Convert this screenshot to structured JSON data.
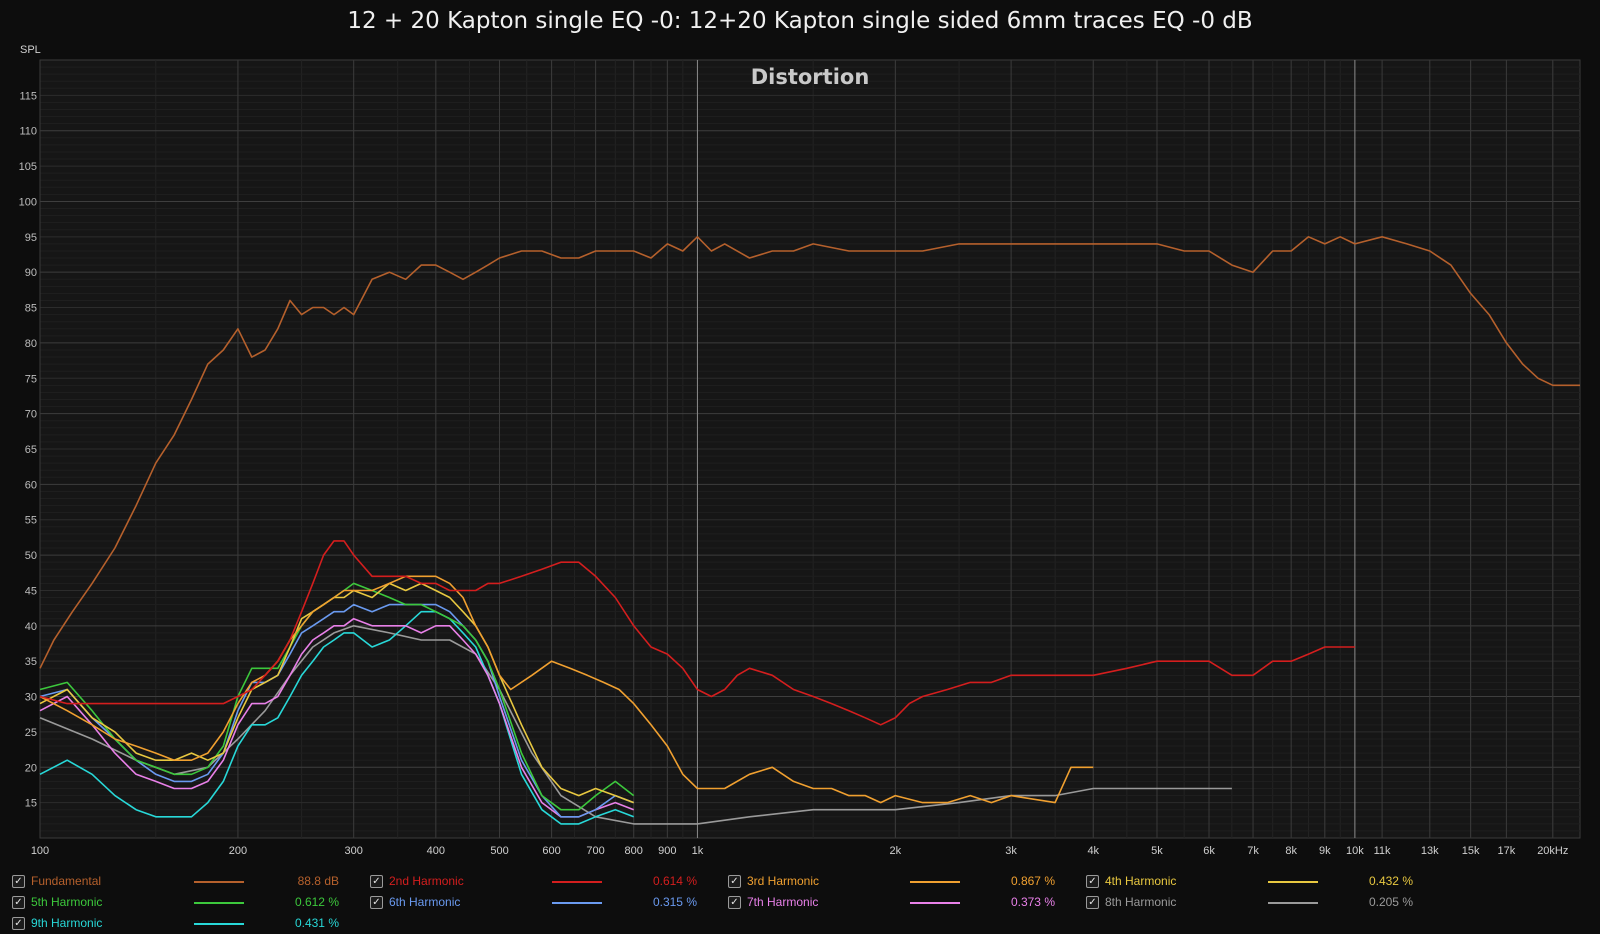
{
  "chart_data": {
    "type": "line",
    "title": "12 + 20 Kapton single EQ -0: 12+20 Kapton single sided 6mm traces EQ -0 dB",
    "annotation": "Distortion",
    "ylabel": "SPL",
    "xlabel": "",
    "xscale": "log",
    "xlim": [
      100,
      22000
    ],
    "ylim": [
      10,
      120
    ],
    "grid": true,
    "legend_position": "bottom",
    "y_ticks": [
      15,
      20,
      25,
      30,
      35,
      40,
      45,
      50,
      55,
      60,
      65,
      70,
      75,
      80,
      85,
      90,
      95,
      100,
      105,
      110,
      115
    ],
    "x_ticks": [
      {
        "value": 100,
        "label": "100"
      },
      {
        "value": 200,
        "label": "200"
      },
      {
        "value": 300,
        "label": "300"
      },
      {
        "value": 400,
        "label": "400"
      },
      {
        "value": 500,
        "label": "500"
      },
      {
        "value": 600,
        "label": "600"
      },
      {
        "value": 700,
        "label": "700"
      },
      {
        "value": 800,
        "label": "800"
      },
      {
        "value": 900,
        "label": "900"
      },
      {
        "value": 1000,
        "label": "1k"
      },
      {
        "value": 2000,
        "label": "2k"
      },
      {
        "value": 3000,
        "label": "3k"
      },
      {
        "value": 4000,
        "label": "4k"
      },
      {
        "value": 5000,
        "label": "5k"
      },
      {
        "value": 6000,
        "label": "6k"
      },
      {
        "value": 7000,
        "label": "7k"
      },
      {
        "value": 8000,
        "label": "8k"
      },
      {
        "value": 9000,
        "label": "9k"
      },
      {
        "value": 10000,
        "label": "10k"
      },
      {
        "value": 11000,
        "label": "11k"
      },
      {
        "value": 13000,
        "label": "13k"
      },
      {
        "value": 15000,
        "label": "15k"
      },
      {
        "value": 17000,
        "label": "17k"
      },
      {
        "value": 20000,
        "label": "20kHz"
      }
    ],
    "series": [
      {
        "name": "Fundamental",
        "color": "#b5602c",
        "value_label": "88.8 dB",
        "x": [
          100,
          105,
          112,
          120,
          130,
          140,
          150,
          160,
          170,
          180,
          190,
          200,
          210,
          220,
          230,
          240,
          250,
          260,
          270,
          280,
          290,
          300,
          320,
          340,
          360,
          380,
          400,
          420,
          440,
          460,
          480,
          500,
          540,
          580,
          620,
          660,
          700,
          750,
          800,
          850,
          900,
          950,
          1000,
          1050,
          1100,
          1200,
          1300,
          1400,
          1500,
          1700,
          1900,
          2000,
          2200,
          2500,
          2800,
          3000,
          3500,
          4000,
          4500,
          5000,
          5500,
          6000,
          6500,
          7000,
          7500,
          8000,
          8500,
          9000,
          9500,
          10000,
          11000,
          12000,
          13000,
          14000,
          15000,
          16000,
          17000,
          18000,
          19000,
          20000,
          21000,
          22000
        ],
        "y": [
          34,
          38,
          42,
          46,
          51,
          57,
          63,
          67,
          72,
          77,
          79,
          82,
          78,
          79,
          82,
          86,
          84,
          85,
          85,
          84,
          85,
          84,
          89,
          90,
          89,
          91,
          91,
          90,
          89,
          90,
          91,
          92,
          93,
          93,
          92,
          92,
          93,
          93,
          93,
          92,
          94,
          93,
          95,
          93,
          94,
          92,
          93,
          93,
          94,
          93,
          93,
          93,
          93,
          94,
          94,
          94,
          94,
          94,
          94,
          94,
          93,
          93,
          91,
          90,
          93,
          93,
          95,
          94,
          95,
          94,
          95,
          94,
          93,
          91,
          87,
          84,
          80,
          77,
          75,
          74,
          74,
          74
        ]
      },
      {
        "name": "2nd Harmonic",
        "color": "#d41e1e",
        "value_label": "0.614 %",
        "x": [
          100,
          110,
          120,
          130,
          140,
          150,
          160,
          170,
          180,
          190,
          200,
          210,
          220,
          230,
          240,
          250,
          260,
          270,
          280,
          290,
          300,
          320,
          340,
          360,
          380,
          400,
          420,
          440,
          460,
          480,
          500,
          540,
          580,
          620,
          660,
          700,
          750,
          800,
          850,
          900,
          950,
          1000,
          1050,
          1100,
          1150,
          1200,
          1300,
          1400,
          1500,
          1600,
          1700,
          1800,
          1900,
          2000,
          2100,
          2200,
          2400,
          2600,
          2800,
          3000,
          3500,
          4000,
          4500,
          5000,
          5500,
          6000,
          6500,
          7000,
          7500,
          8000,
          8500,
          9000,
          9500,
          10000
        ],
        "y": [
          30,
          29,
          29,
          29,
          29,
          29,
          29,
          29,
          29,
          29,
          30,
          31,
          33,
          35,
          38,
          42,
          46,
          50,
          52,
          52,
          50,
          47,
          47,
          47,
          46,
          46,
          45,
          45,
          45,
          46,
          46,
          47,
          48,
          49,
          49,
          47,
          44,
          40,
          37,
          36,
          34,
          31,
          30,
          31,
          33,
          34,
          33,
          31,
          30,
          29,
          28,
          27,
          26,
          27,
          29,
          30,
          31,
          32,
          32,
          33,
          33,
          33,
          34,
          35,
          35,
          35,
          33,
          33,
          35,
          35,
          36,
          37,
          37,
          37
        ]
      },
      {
        "name": "3rd Harmonic",
        "color": "#f0a030",
        "value_label": "0.867 %",
        "x": [
          100,
          110,
          120,
          130,
          140,
          150,
          160,
          170,
          180,
          190,
          200,
          210,
          220,
          230,
          240,
          250,
          260,
          270,
          280,
          290,
          300,
          320,
          340,
          360,
          380,
          400,
          420,
          440,
          460,
          480,
          500,
          520,
          560,
          600,
          640,
          680,
          720,
          760,
          800,
          850,
          900,
          950,
          1000,
          1100,
          1200,
          1300,
          1400,
          1500,
          1600,
          1700,
          1800,
          1900,
          2000,
          2200,
          2400,
          2600,
          2800,
          3000,
          3500,
          3700,
          4000
        ],
        "y": [
          30,
          28,
          26,
          24,
          23,
          22,
          21,
          21,
          22,
          25,
          29,
          32,
          33,
          35,
          38,
          40,
          42,
          43,
          44,
          45,
          45,
          45,
          46,
          47,
          47,
          47,
          46,
          44,
          40,
          37,
          33,
          31,
          33,
          35,
          34,
          33,
          32,
          31,
          29,
          26,
          23,
          19,
          17,
          17,
          19,
          20,
          18,
          17,
          17,
          16,
          16,
          15,
          16,
          15,
          15,
          16,
          15,
          16,
          15,
          20,
          20
        ]
      },
      {
        "name": "4th Harmonic",
        "color": "#e8c840",
        "value_label": "0.432 %",
        "x": [
          100,
          110,
          120,
          130,
          140,
          150,
          160,
          170,
          180,
          190,
          200,
          210,
          220,
          230,
          240,
          250,
          260,
          270,
          280,
          290,
          300,
          320,
          340,
          360,
          380,
          400,
          420,
          440,
          460,
          480,
          500,
          540,
          580,
          620,
          660,
          700,
          750,
          800
        ],
        "y": [
          29,
          31,
          27,
          25,
          22,
          21,
          21,
          22,
          21,
          22,
          27,
          31,
          32,
          33,
          37,
          41,
          42,
          43,
          44,
          44,
          45,
          44,
          46,
          45,
          46,
          45,
          44,
          42,
          40,
          37,
          33,
          26,
          20,
          17,
          16,
          17,
          16,
          15
        ]
      },
      {
        "name": "5th Harmonic",
        "color": "#3cc83c",
        "value_label": "0.612 %",
        "x": [
          100,
          110,
          120,
          130,
          140,
          150,
          160,
          170,
          180,
          190,
          200,
          210,
          220,
          230,
          240,
          250,
          260,
          270,
          280,
          290,
          300,
          320,
          340,
          360,
          380,
          400,
          420,
          440,
          460,
          480,
          500,
          540,
          580,
          620,
          660,
          700,
          750,
          800
        ],
        "y": [
          31,
          32,
          28,
          24,
          21,
          20,
          19,
          19,
          20,
          23,
          30,
          34,
          34,
          34,
          37,
          40,
          42,
          43,
          44,
          45,
          46,
          45,
          44,
          43,
          43,
          42,
          41,
          40,
          38,
          35,
          31,
          22,
          16,
          14,
          14,
          16,
          18,
          16
        ]
      },
      {
        "name": "6th Harmonic",
        "color": "#6a9af0",
        "value_label": "0.315 %",
        "x": [
          100,
          110,
          120,
          130,
          140,
          150,
          160,
          170,
          180,
          190,
          200,
          210,
          220,
          230,
          240,
          250,
          260,
          270,
          280,
          290,
          300,
          320,
          340,
          360,
          380,
          400,
          420,
          440,
          460,
          480,
          500,
          540,
          580,
          620,
          660,
          700,
          750,
          800
        ],
        "y": [
          30,
          31,
          27,
          24,
          21,
          19,
          18,
          18,
          19,
          22,
          28,
          32,
          32,
          33,
          36,
          39,
          40,
          41,
          42,
          42,
          43,
          42,
          43,
          43,
          43,
          43,
          42,
          40,
          38,
          35,
          30,
          21,
          16,
          13,
          13,
          14,
          16,
          15
        ]
      },
      {
        "name": "7th Harmonic",
        "color": "#e880e8",
        "value_label": "0.373 %",
        "x": [
          100,
          110,
          120,
          130,
          140,
          150,
          160,
          170,
          180,
          190,
          200,
          210,
          220,
          230,
          240,
          250,
          260,
          270,
          280,
          290,
          300,
          320,
          340,
          360,
          380,
          400,
          420,
          440,
          460,
          480,
          500,
          540,
          580,
          620,
          660,
          700,
          750,
          800
        ],
        "y": [
          28,
          30,
          26,
          22,
          19,
          18,
          17,
          17,
          18,
          21,
          26,
          29,
          29,
          30,
          33,
          36,
          38,
          39,
          40,
          40,
          41,
          40,
          40,
          40,
          39,
          40,
          40,
          38,
          36,
          33,
          29,
          20,
          15,
          13,
          13,
          14,
          15,
          14
        ]
      },
      {
        "name": "8th Harmonic",
        "color": "#9a9a9a",
        "value_label": "0.205 %",
        "x": [
          100,
          120,
          140,
          160,
          180,
          200,
          220,
          240,
          260,
          280,
          300,
          340,
          380,
          420,
          460,
          500,
          560,
          620,
          700,
          800,
          900,
          1000,
          1200,
          1500,
          2000,
          2500,
          3000,
          3500,
          4000,
          5000,
          6000,
          6500
        ],
        "y": [
          27,
          24,
          21,
          19,
          20,
          24,
          28,
          33,
          37,
          39,
          40,
          39,
          38,
          38,
          36,
          31,
          22,
          16,
          13,
          12,
          12,
          12,
          13,
          14,
          14,
          15,
          16,
          16,
          17,
          17,
          17,
          17
        ]
      },
      {
        "name": "9th Harmonic",
        "color": "#28d8d8",
        "value_label": "0.431 %",
        "x": [
          100,
          110,
          120,
          130,
          140,
          150,
          160,
          170,
          180,
          190,
          200,
          210,
          220,
          230,
          240,
          250,
          260,
          270,
          280,
          290,
          300,
          320,
          340,
          360,
          380,
          400,
          420,
          440,
          460,
          480,
          500,
          540,
          580,
          620,
          660,
          700,
          750,
          800
        ],
        "y": [
          19,
          21,
          19,
          16,
          14,
          13,
          13,
          13,
          15,
          18,
          23,
          26,
          26,
          27,
          30,
          33,
          35,
          37,
          38,
          39,
          39,
          37,
          38,
          40,
          42,
          42,
          41,
          39,
          37,
          33,
          29,
          19,
          14,
          12,
          12,
          13,
          14,
          13
        ]
      }
    ]
  }
}
